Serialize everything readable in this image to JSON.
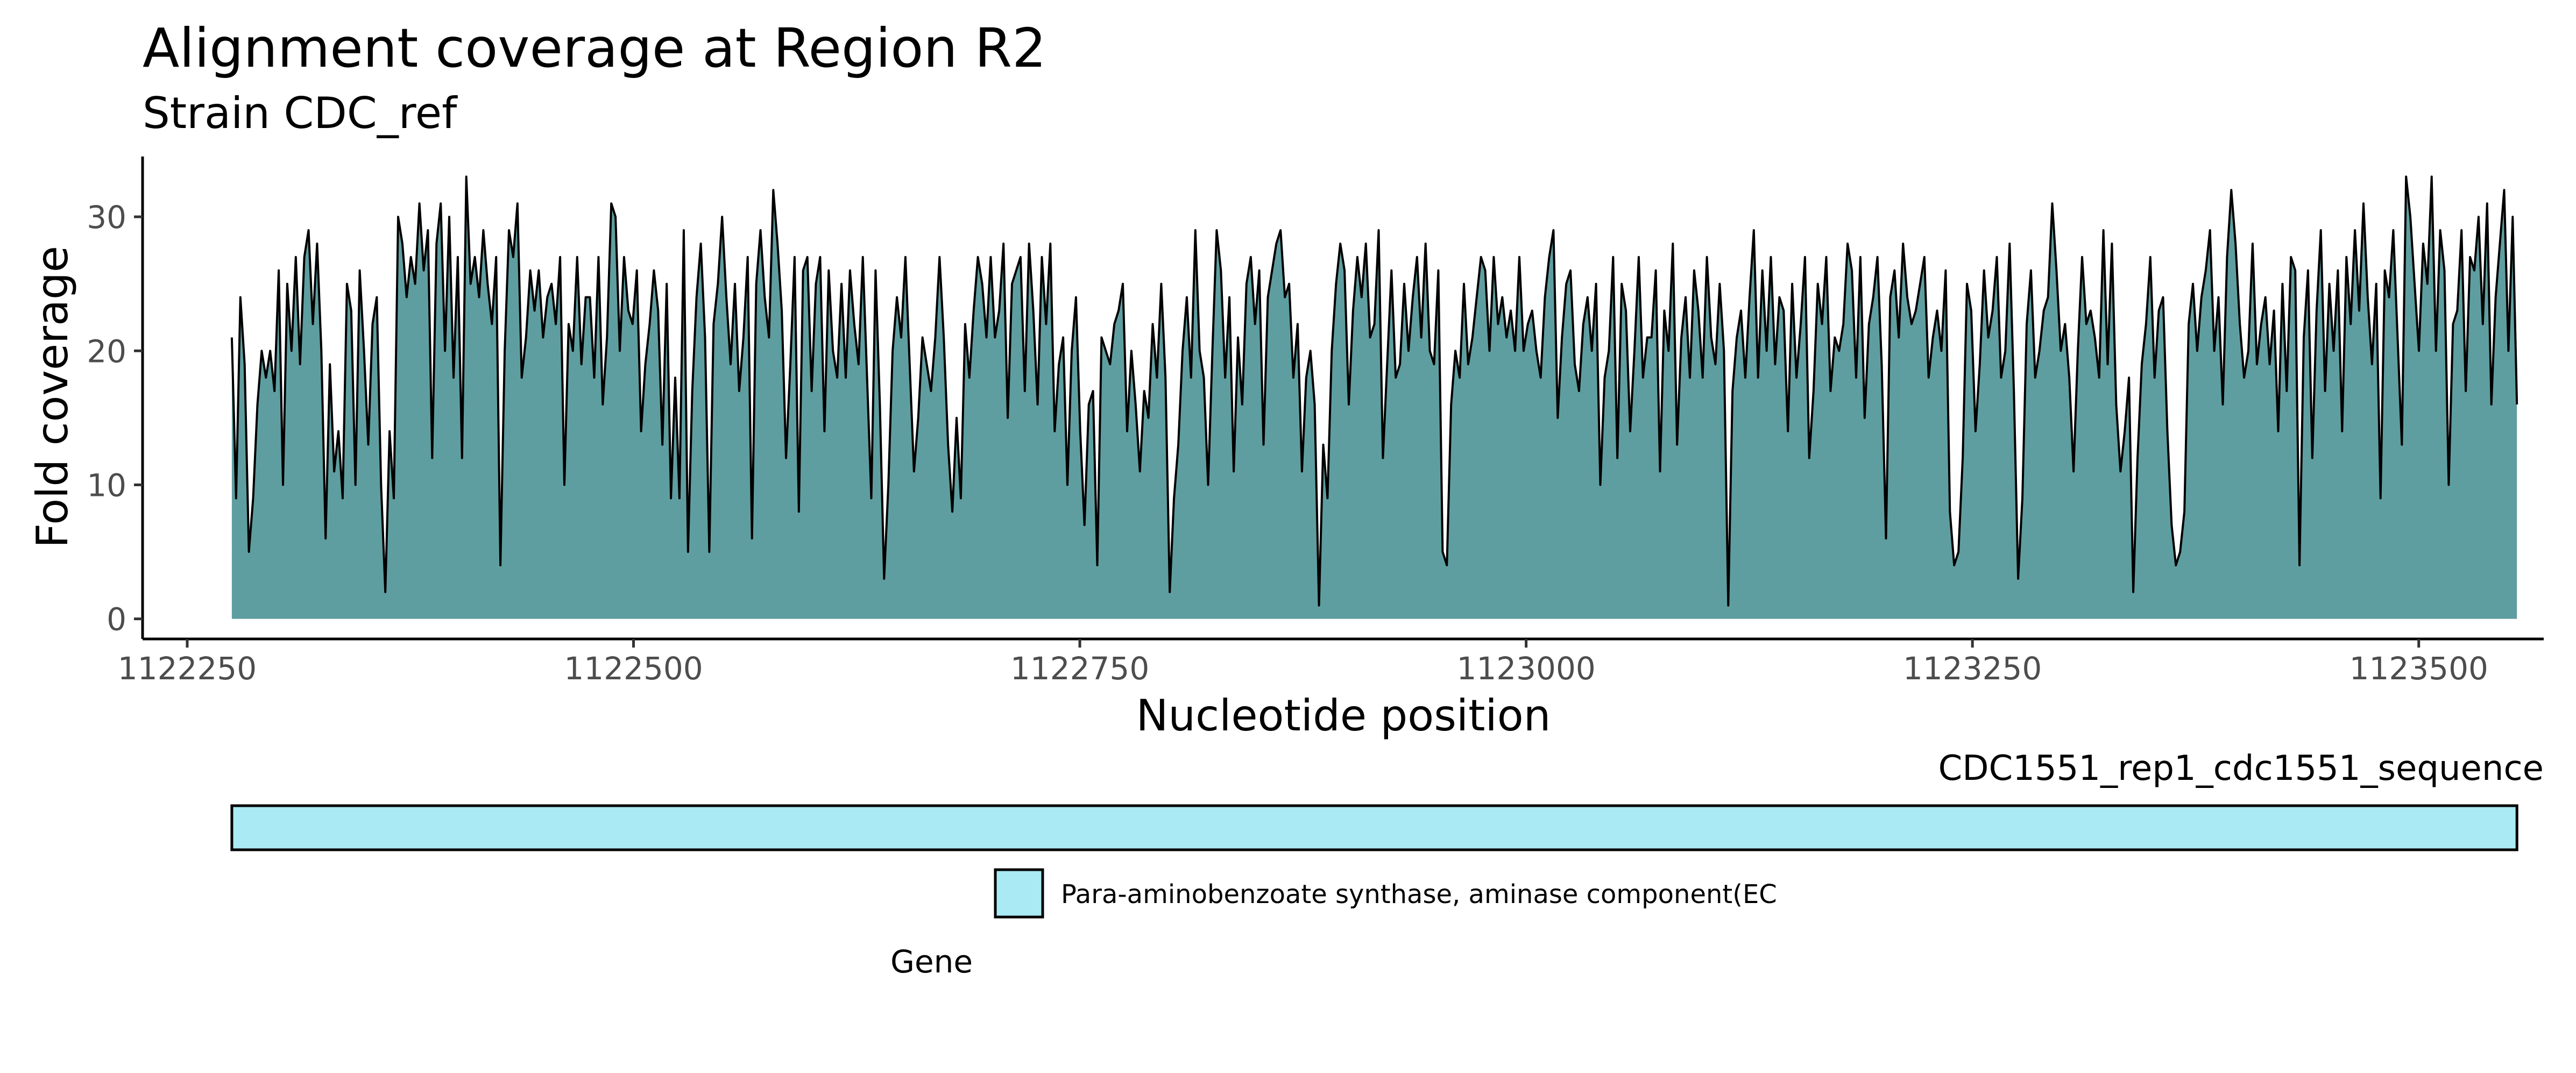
{
  "chart_data": {
    "type": "area",
    "title": "Alignment coverage at Region R2",
    "subtitle": "Strain CDC_ref",
    "xlabel": "Nucleotide position",
    "ylabel": "Fold coverage",
    "xlim": [
      1122225,
      1123570
    ],
    "ylim": [
      -1.5,
      34.5
    ],
    "x_ticks": [
      1122250,
      1122500,
      1122750,
      1123000,
      1123250,
      1123500
    ],
    "y_ticks": [
      0,
      10,
      20,
      30
    ],
    "x_start": 1122275,
    "x_end": 1123555,
    "grid": false,
    "fill_color": "#5f9ea0",
    "line_color": "#000000",
    "series": [
      {
        "values": [
          21,
          9,
          24,
          19,
          5,
          9,
          16,
          20,
          18,
          20,
          17,
          26,
          10,
          25,
          20,
          27,
          19,
          27,
          29,
          22,
          28,
          20,
          6,
          19,
          11,
          14,
          9,
          25,
          23,
          10,
          26,
          20,
          13,
          22,
          24,
          10,
          2,
          14,
          9,
          30,
          28,
          24,
          27,
          25,
          31,
          26,
          29,
          12,
          28,
          31,
          20,
          30,
          18,
          27,
          12,
          33,
          25,
          27,
          24,
          29,
          25,
          22,
          27,
          4,
          20,
          29,
          27,
          31,
          18,
          21,
          26,
          23,
          26,
          21,
          24,
          25,
          22,
          27,
          10,
          22,
          20,
          27,
          19,
          24,
          24,
          18,
          27,
          16,
          21,
          31,
          30,
          20,
          27,
          23,
          22,
          26,
          14,
          19,
          22,
          26,
          23,
          13,
          25,
          9,
          18,
          9,
          29,
          5,
          17,
          24,
          28,
          21,
          5,
          22,
          25,
          30,
          24,
          19,
          25,
          17,
          21,
          27,
          6,
          25,
          29,
          24,
          21,
          32,
          28,
          23,
          12,
          19,
          27,
          8,
          26,
          27,
          17,
          25,
          27,
          14,
          26,
          20,
          18,
          25,
          18,
          26,
          22,
          19,
          27,
          18,
          9,
          26,
          16,
          3,
          10,
          20,
          24,
          21,
          27,
          19,
          11,
          15,
          21,
          19,
          17,
          21,
          27,
          21,
          13,
          8,
          15,
          9,
          22,
          18,
          23,
          27,
          25,
          21,
          27,
          21,
          23,
          28,
          15,
          25,
          26,
          27,
          17,
          28,
          23,
          16,
          27,
          22,
          28,
          14,
          19,
          21,
          10,
          20,
          24,
          14,
          7,
          16,
          17,
          4,
          21,
          20,
          19,
          22,
          23,
          25,
          14,
          20,
          16,
          11,
          17,
          15,
          22,
          18,
          25,
          18,
          2,
          9,
          13,
          20,
          24,
          18,
          29,
          20,
          18,
          10,
          20,
          29,
          26,
          18,
          24,
          11,
          21,
          16,
          25,
          27,
          22,
          26,
          13,
          24,
          26,
          28,
          29,
          24,
          25,
          18,
          22,
          11,
          18,
          20,
          16,
          1,
          13,
          9,
          20,
          25,
          28,
          26,
          16,
          23,
          27,
          24,
          28,
          21,
          22,
          29,
          12,
          19,
          26,
          18,
          19,
          25,
          20,
          24,
          27,
          21,
          28,
          20,
          19,
          26,
          5,
          4,
          16,
          20,
          18,
          25,
          19,
          21,
          24,
          27,
          26,
          20,
          27,
          22,
          24,
          21,
          23,
          20,
          27,
          20,
          22,
          23,
          20,
          18,
          24,
          27,
          29,
          15,
          21,
          25,
          26,
          19,
          17,
          22,
          24,
          20,
          25,
          10,
          18,
          20,
          27,
          12,
          25,
          23,
          14,
          20,
          27,
          18,
          21,
          21,
          26,
          11,
          23,
          20,
          28,
          13,
          21,
          24,
          18,
          26,
          23,
          18,
          27,
          21,
          19,
          25,
          20,
          1,
          17,
          21,
          23,
          18,
          24,
          29,
          18,
          26,
          20,
          27,
          19,
          24,
          23,
          14,
          25,
          18,
          22,
          27,
          12,
          17,
          25,
          22,
          27,
          17,
          21,
          20,
          22,
          28,
          26,
          18,
          27,
          15,
          22,
          24,
          27,
          19,
          6,
          24,
          26,
          21,
          28,
          24,
          22,
          23,
          25,
          27,
          18,
          21,
          23,
          20,
          26,
          8,
          4,
          5,
          12,
          25,
          23,
          14,
          19,
          26,
          21,
          23,
          27,
          18,
          20,
          28,
          17,
          3,
          9,
          22,
          26,
          18,
          20,
          23,
          24,
          31,
          26,
          20,
          22,
          18,
          11,
          20,
          27,
          22,
          23,
          21,
          18,
          29,
          19,
          28,
          16,
          11,
          14,
          18,
          2,
          12,
          19,
          22,
          27,
          18,
          23,
          24,
          14,
          7,
          4,
          5,
          8,
          22,
          25,
          20,
          24,
          26,
          29,
          20,
          24,
          16,
          27,
          32,
          28,
          22,
          18,
          20,
          28,
          19,
          22,
          24,
          19,
          23,
          14,
          25,
          17,
          27,
          26,
          4,
          21,
          26,
          12,
          23,
          29,
          17,
          25,
          20,
          26,
          14,
          27,
          22,
          29,
          23,
          31,
          24,
          19,
          25,
          9,
          26,
          24,
          29,
          21,
          13,
          33,
          30,
          25,
          20,
          28,
          25,
          33,
          20,
          29,
          26,
          10,
          22,
          23,
          29,
          17,
          27,
          26,
          30,
          22,
          31,
          16,
          24,
          28,
          32,
          20,
          30,
          16
        ]
      }
    ]
  },
  "gene_track": {
    "label": "CDC1551_rep1_cdc1551_sequence",
    "bar_color": "#a9eaf4",
    "gene_start": 1122275,
    "gene_end": 1123555
  },
  "legend": {
    "title": "Gene",
    "item_label": "Para-aminobenzoate synthase, aminase component(EC",
    "item_color": "#a9eaf4"
  }
}
